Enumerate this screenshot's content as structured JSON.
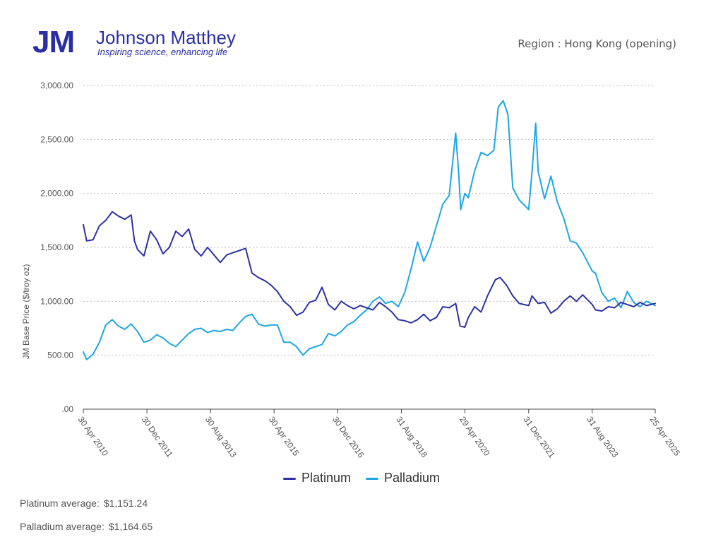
{
  "header": {
    "logo_mark": "JM",
    "logo_name": "Johnson Matthey",
    "logo_tagline": "Inspiring science, enhancing life",
    "region_text": "Region : Hong Kong (opening)"
  },
  "colors": {
    "platinum": "#2e31a6",
    "palladium": "#1ea6e6",
    "grid": "#bbbbbb",
    "axis_text": "#555555"
  },
  "summary": {
    "platinum_label": "Platinum average:",
    "platinum_value": "$1,151.24",
    "palladium_label": "Palladium average:",
    "palladium_value": "$1,164.65"
  },
  "chart_data": {
    "type": "line",
    "ylabel": "JM Base Price ($/troy oz)",
    "ylim": [
      0,
      3000
    ],
    "yticks": [
      0,
      500,
      1000,
      1500,
      2000,
      2500,
      3000
    ],
    "ytick_labels": [
      ".00",
      "500.00",
      "1,000.00",
      "1,500.00",
      "2,000.00",
      "2,500.00",
      "3,000.00"
    ],
    "xlim": [
      "2010-04-30",
      "2025-04-25"
    ],
    "xticks": [
      "2010-04-30",
      "2011-12-30",
      "2013-08-30",
      "2015-04-30",
      "2016-12-30",
      "2018-08-31",
      "2020-04-29",
      "2021-12-31",
      "2023-08-31",
      "2025-04-25"
    ],
    "xtick_labels": [
      "30 Apr 2010",
      "30 Dec 2011",
      "30 Aug 2013",
      "30 Apr 2015",
      "30 Dec 2016",
      "31 Aug 2018",
      "29 Apr 2020",
      "31 Dec 2021",
      "31 Aug 2023",
      "25 Apr 2025"
    ],
    "grid": true,
    "legend_position": "bottom-center",
    "series": [
      {
        "name": "Platinum",
        "x": [
          "2010-04-30",
          "2010-06-01",
          "2010-08-01",
          "2010-10-01",
          "2010-12-01",
          "2011-02-01",
          "2011-04-01",
          "2011-06-01",
          "2011-08-01",
          "2011-09-01",
          "2011-10-01",
          "2011-12-01",
          "2012-02-01",
          "2012-04-01",
          "2012-06-01",
          "2012-08-01",
          "2012-10-01",
          "2012-12-01",
          "2013-02-01",
          "2013-04-01",
          "2013-06-01",
          "2013-08-01",
          "2013-10-01",
          "2013-12-01",
          "2014-02-01",
          "2014-04-01",
          "2014-06-01",
          "2014-08-01",
          "2014-10-01",
          "2014-12-01",
          "2015-02-01",
          "2015-04-01",
          "2015-06-01",
          "2015-08-01",
          "2015-10-01",
          "2015-12-01",
          "2016-02-01",
          "2016-04-01",
          "2016-06-01",
          "2016-08-01",
          "2016-10-01",
          "2016-12-01",
          "2017-02-01",
          "2017-04-01",
          "2017-06-01",
          "2017-08-01",
          "2017-10-01",
          "2017-12-01",
          "2018-02-01",
          "2018-04-01",
          "2018-06-01",
          "2018-08-01",
          "2018-10-01",
          "2018-12-01",
          "2019-02-01",
          "2019-04-01",
          "2019-06-01",
          "2019-08-01",
          "2019-10-01",
          "2019-12-01",
          "2020-02-01",
          "2020-03-15",
          "2020-04-29",
          "2020-06-01",
          "2020-08-01",
          "2020-10-01",
          "2020-12-01",
          "2021-02-15",
          "2021-04-01",
          "2021-06-01",
          "2021-08-01",
          "2021-10-01",
          "2021-12-31",
          "2022-02-01",
          "2022-04-01",
          "2022-06-01",
          "2022-08-01",
          "2022-10-01",
          "2022-12-01",
          "2023-02-01",
          "2023-04-01",
          "2023-06-01",
          "2023-08-31",
          "2023-10-01",
          "2023-12-01",
          "2024-02-01",
          "2024-04-01",
          "2024-06-01",
          "2024-08-01",
          "2024-10-01",
          "2024-12-01",
          "2025-02-01",
          "2025-04-25"
        ],
        "values": [
          1710,
          1560,
          1570,
          1700,
          1750,
          1830,
          1790,
          1760,
          1800,
          1560,
          1480,
          1420,
          1650,
          1570,
          1440,
          1500,
          1650,
          1600,
          1670,
          1480,
          1420,
          1500,
          1430,
          1360,
          1430,
          1450,
          1470,
          1490,
          1260,
          1220,
          1190,
          1150,
          1090,
          1000,
          950,
          870,
          900,
          990,
          1010,
          1130,
          970,
          920,
          1000,
          960,
          930,
          960,
          940,
          920,
          990,
          950,
          900,
          830,
          820,
          800,
          830,
          880,
          820,
          850,
          950,
          940,
          980,
          770,
          760,
          850,
          950,
          900,
          1050,
          1200,
          1220,
          1150,
          1050,
          980,
          960,
          1050,
          980,
          990,
          890,
          930,
          1000,
          1050,
          1000,
          1060,
          970,
          920,
          910,
          950,
          940,
          990,
          970,
          950,
          990,
          960,
          980
        ]
      },
      {
        "name": "Palladium",
        "x": [
          "2010-04-30",
          "2010-06-01",
          "2010-08-01",
          "2010-10-01",
          "2010-12-01",
          "2011-02-01",
          "2011-04-01",
          "2011-06-01",
          "2011-08-01",
          "2011-10-01",
          "2011-12-01",
          "2012-02-01",
          "2012-04-01",
          "2012-06-01",
          "2012-08-01",
          "2012-10-01",
          "2012-12-01",
          "2013-02-01",
          "2013-04-01",
          "2013-06-01",
          "2013-08-01",
          "2013-10-01",
          "2013-12-01",
          "2014-02-01",
          "2014-04-01",
          "2014-06-01",
          "2014-08-01",
          "2014-10-01",
          "2014-12-01",
          "2015-02-01",
          "2015-04-01",
          "2015-06-01",
          "2015-08-01",
          "2015-10-01",
          "2015-12-01",
          "2016-02-01",
          "2016-04-01",
          "2016-06-01",
          "2016-08-01",
          "2016-10-01",
          "2016-12-01",
          "2017-02-01",
          "2017-04-01",
          "2017-06-01",
          "2017-08-01",
          "2017-10-01",
          "2017-12-01",
          "2018-02-01",
          "2018-04-01",
          "2018-06-01",
          "2018-08-01",
          "2018-10-01",
          "2018-12-01",
          "2019-02-01",
          "2019-04-01",
          "2019-06-01",
          "2019-08-01",
          "2019-10-01",
          "2019-12-01",
          "2020-02-01",
          "2020-03-01",
          "2020-03-20",
          "2020-04-29",
          "2020-06-01",
          "2020-08-01",
          "2020-10-01",
          "2020-12-01",
          "2021-02-01",
          "2021-03-15",
          "2021-05-01",
          "2021-06-15",
          "2021-08-01",
          "2021-10-01",
          "2021-12-31",
          "2022-02-01",
          "2022-03-08",
          "2022-04-01",
          "2022-06-01",
          "2022-08-01",
          "2022-10-01",
          "2022-12-01",
          "2023-02-01",
          "2023-04-01",
          "2023-06-01",
          "2023-08-31",
          "2023-10-01",
          "2023-12-01",
          "2024-02-01",
          "2024-04-01",
          "2024-06-01",
          "2024-08-01",
          "2024-10-01",
          "2024-12-01",
          "2025-02-01",
          "2025-04-25"
        ],
        "values": [
          530,
          460,
          510,
          620,
          780,
          830,
          770,
          740,
          790,
          720,
          620,
          640,
          690,
          660,
          610,
          580,
          640,
          700,
          740,
          750,
          710,
          730,
          720,
          740,
          730,
          800,
          860,
          880,
          790,
          770,
          780,
          780,
          620,
          620,
          580,
          500,
          560,
          580,
          600,
          700,
          680,
          720,
          780,
          810,
          870,
          920,
          1000,
          1040,
          980,
          1000,
          950,
          1080,
          1300,
          1550,
          1370,
          1500,
          1700,
          1900,
          1980,
          2560,
          2180,
          1850,
          2000,
          1960,
          2210,
          2380,
          2350,
          2400,
          2800,
          2860,
          2730,
          2050,
          1940,
          1850,
          2200,
          2650,
          2200,
          1950,
          2160,
          1920,
          1770,
          1560,
          1540,
          1450,
          1280,
          1260,
          1080,
          1000,
          1030,
          940,
          1090,
          990,
          950,
          1000,
          960
        ]
      }
    ]
  }
}
